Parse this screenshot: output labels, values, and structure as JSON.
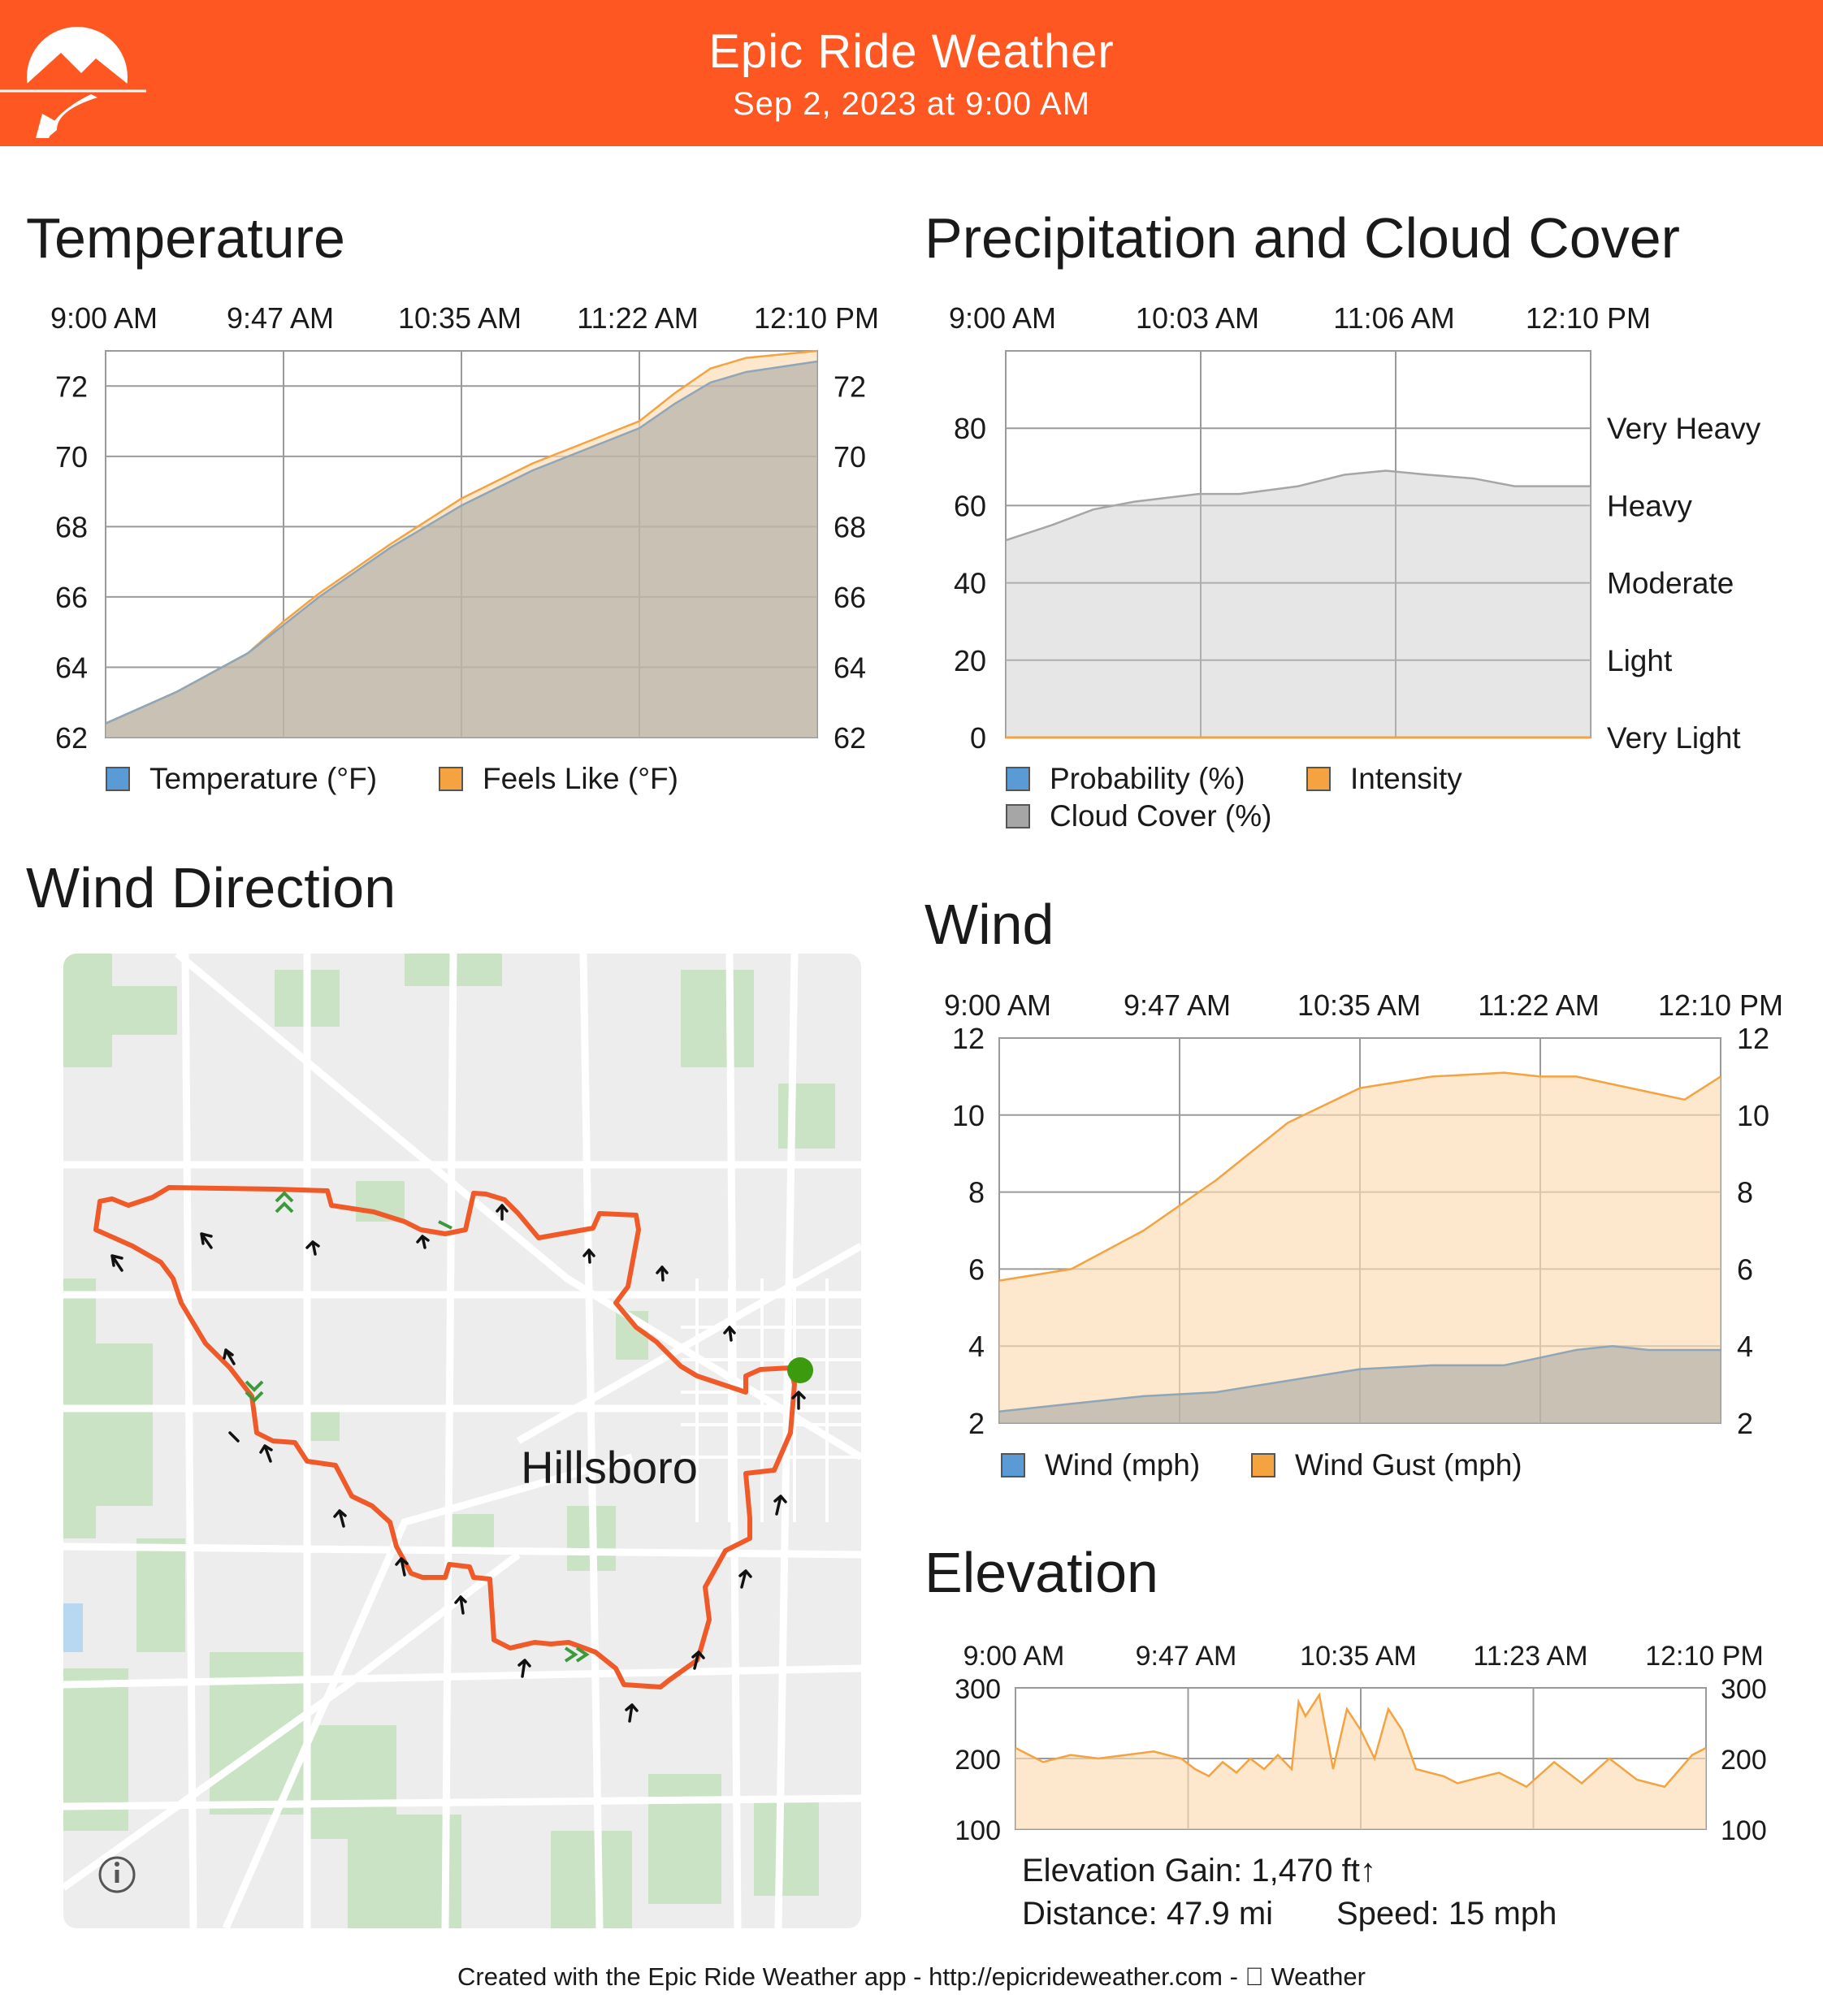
{
  "header": {
    "title": "Epic Ride Weather",
    "subtitle": "Sep 2, 2023 at 9:00 AM",
    "brand_color": "#ff5722"
  },
  "sections": {
    "temperature": "Temperature",
    "precipitation": "Precipitation and Cloud Cover",
    "wind_direction": "Wind Direction",
    "wind": "Wind",
    "elevation": "Elevation"
  },
  "chart_data": [
    {
      "id": "temperature",
      "type": "area",
      "title": "Temperature",
      "time_labels": [
        "9:00 AM",
        "9:47 AM",
        "10:35 AM",
        "11:22 AM",
        "12:10 PM"
      ],
      "x": [
        0,
        0.1,
        0.2,
        0.25,
        0.3,
        0.4,
        0.5,
        0.6,
        0.7,
        0.75,
        0.8,
        0.85,
        0.9,
        1.0
      ],
      "series": [
        {
          "name": "Temperature (°F)",
          "color": "#5b9bd5",
          "values": [
            62.4,
            63.3,
            64.4,
            65.2,
            66.0,
            67.4,
            68.6,
            69.6,
            70.4,
            70.8,
            71.5,
            72.1,
            72.4,
            72.7
          ]
        },
        {
          "name": "Feels Like (°F)",
          "color": "#f4a340",
          "values": [
            62.4,
            63.3,
            64.4,
            65.3,
            66.1,
            67.5,
            68.8,
            69.8,
            70.6,
            71.0,
            71.8,
            72.5,
            72.8,
            73.0
          ]
        }
      ],
      "ylim": [
        62,
        73
      ],
      "y_ticks": [
        62,
        64,
        66,
        68,
        70,
        72
      ],
      "grid": true,
      "legend_position": "bottom-left"
    },
    {
      "id": "precipitation",
      "type": "area",
      "title": "Precipitation and Cloud Cover",
      "time_labels": [
        "9:00 AM",
        "10:03 AM",
        "11:06 AM",
        "12:10 PM"
      ],
      "x": [
        0,
        0.08,
        0.15,
        0.22,
        0.33,
        0.4,
        0.5,
        0.58,
        0.65,
        0.72,
        0.8,
        0.87,
        0.93,
        1.0
      ],
      "series": [
        {
          "name": "Probability (%)",
          "color": "#5b9bd5",
          "values": [
            0,
            0,
            0,
            0,
            0,
            0,
            0,
            0,
            0,
            0,
            0,
            0,
            0,
            0
          ]
        },
        {
          "name": "Intensity",
          "color": "#f4a340",
          "values": [
            0,
            0,
            0,
            0,
            0,
            0,
            0,
            0,
            0,
            0,
            0,
            0,
            0,
            0
          ]
        },
        {
          "name": "Cloud Cover (%)",
          "color": "#a6a6a6",
          "values": [
            51,
            55,
            59,
            61,
            63,
            63,
            65,
            68,
            69,
            68,
            67,
            65,
            65,
            65
          ]
        }
      ],
      "ylim": [
        0,
        100
      ],
      "y_ticks": [
        0,
        20,
        40,
        60,
        80
      ],
      "intensity_labels": [
        "Very Light",
        "Light",
        "Moderate",
        "Heavy",
        "Very Heavy"
      ],
      "grid": true,
      "legend_position": "bottom-left"
    },
    {
      "id": "wind",
      "type": "area",
      "title": "Wind",
      "time_labels": [
        "9:00 AM",
        "9:47 AM",
        "10:35 AM",
        "11:22 AM",
        "12:10 PM"
      ],
      "x": [
        0,
        0.1,
        0.2,
        0.3,
        0.4,
        0.5,
        0.6,
        0.7,
        0.75,
        0.8,
        0.85,
        0.9,
        0.95,
        1.0
      ],
      "series": [
        {
          "name": "Wind (mph)",
          "color": "#5b9bd5",
          "values": [
            2.3,
            2.5,
            2.7,
            2.8,
            3.1,
            3.4,
            3.5,
            3.5,
            3.7,
            3.9,
            4.0,
            3.9,
            3.9,
            3.9
          ]
        },
        {
          "name": "Wind Gust (mph)",
          "color": "#f4a340",
          "values": [
            5.7,
            6.0,
            7.0,
            8.3,
            9.8,
            10.7,
            11.0,
            11.1,
            11.0,
            11.0,
            10.8,
            10.6,
            10.4,
            11.0
          ]
        }
      ],
      "ylim": [
        2,
        12
      ],
      "y_ticks": [
        2,
        4,
        6,
        8,
        10,
        12
      ],
      "grid": true,
      "legend_position": "bottom-left"
    },
    {
      "id": "elevation",
      "type": "area",
      "title": "Elevation",
      "time_labels": [
        "9:00 AM",
        "9:47 AM",
        "10:35 AM",
        "11:23 AM",
        "12:10 PM"
      ],
      "x": [
        0,
        0.04,
        0.08,
        0.12,
        0.16,
        0.2,
        0.24,
        0.26,
        0.28,
        0.3,
        0.32,
        0.34,
        0.36,
        0.38,
        0.4,
        0.41,
        0.42,
        0.44,
        0.46,
        0.48,
        0.5,
        0.52,
        0.54,
        0.56,
        0.58,
        0.6,
        0.62,
        0.64,
        0.66,
        0.7,
        0.74,
        0.78,
        0.82,
        0.86,
        0.9,
        0.94,
        0.98,
        1.0
      ],
      "series": [
        {
          "name": "Elevation",
          "color": "#f4a340",
          "values": [
            215,
            195,
            205,
            200,
            205,
            210,
            200,
            185,
            175,
            195,
            180,
            200,
            185,
            205,
            185,
            280,
            260,
            290,
            185,
            270,
            240,
            200,
            270,
            240,
            185,
            180,
            175,
            165,
            170,
            180,
            160,
            195,
            165,
            200,
            170,
            160,
            205,
            215
          ]
        }
      ],
      "ylim": [
        100,
        300
      ],
      "y_ticks": [
        100,
        200,
        300
      ],
      "grid": true
    }
  ],
  "elevation_stats": {
    "gain": "Elevation Gain: 1,470 ft↑",
    "distance": "Distance: 47.9 mi",
    "speed": "Speed: 15 mph"
  },
  "map": {
    "city_label": "Hillsboro",
    "route_color": "#f05a28",
    "start_marker_color": "#3c9a0e",
    "info_icon": "info-icon"
  },
  "footer": {
    "text": "Created with the Epic Ride Weather app - http://epicrideweather.com -  Weather"
  }
}
